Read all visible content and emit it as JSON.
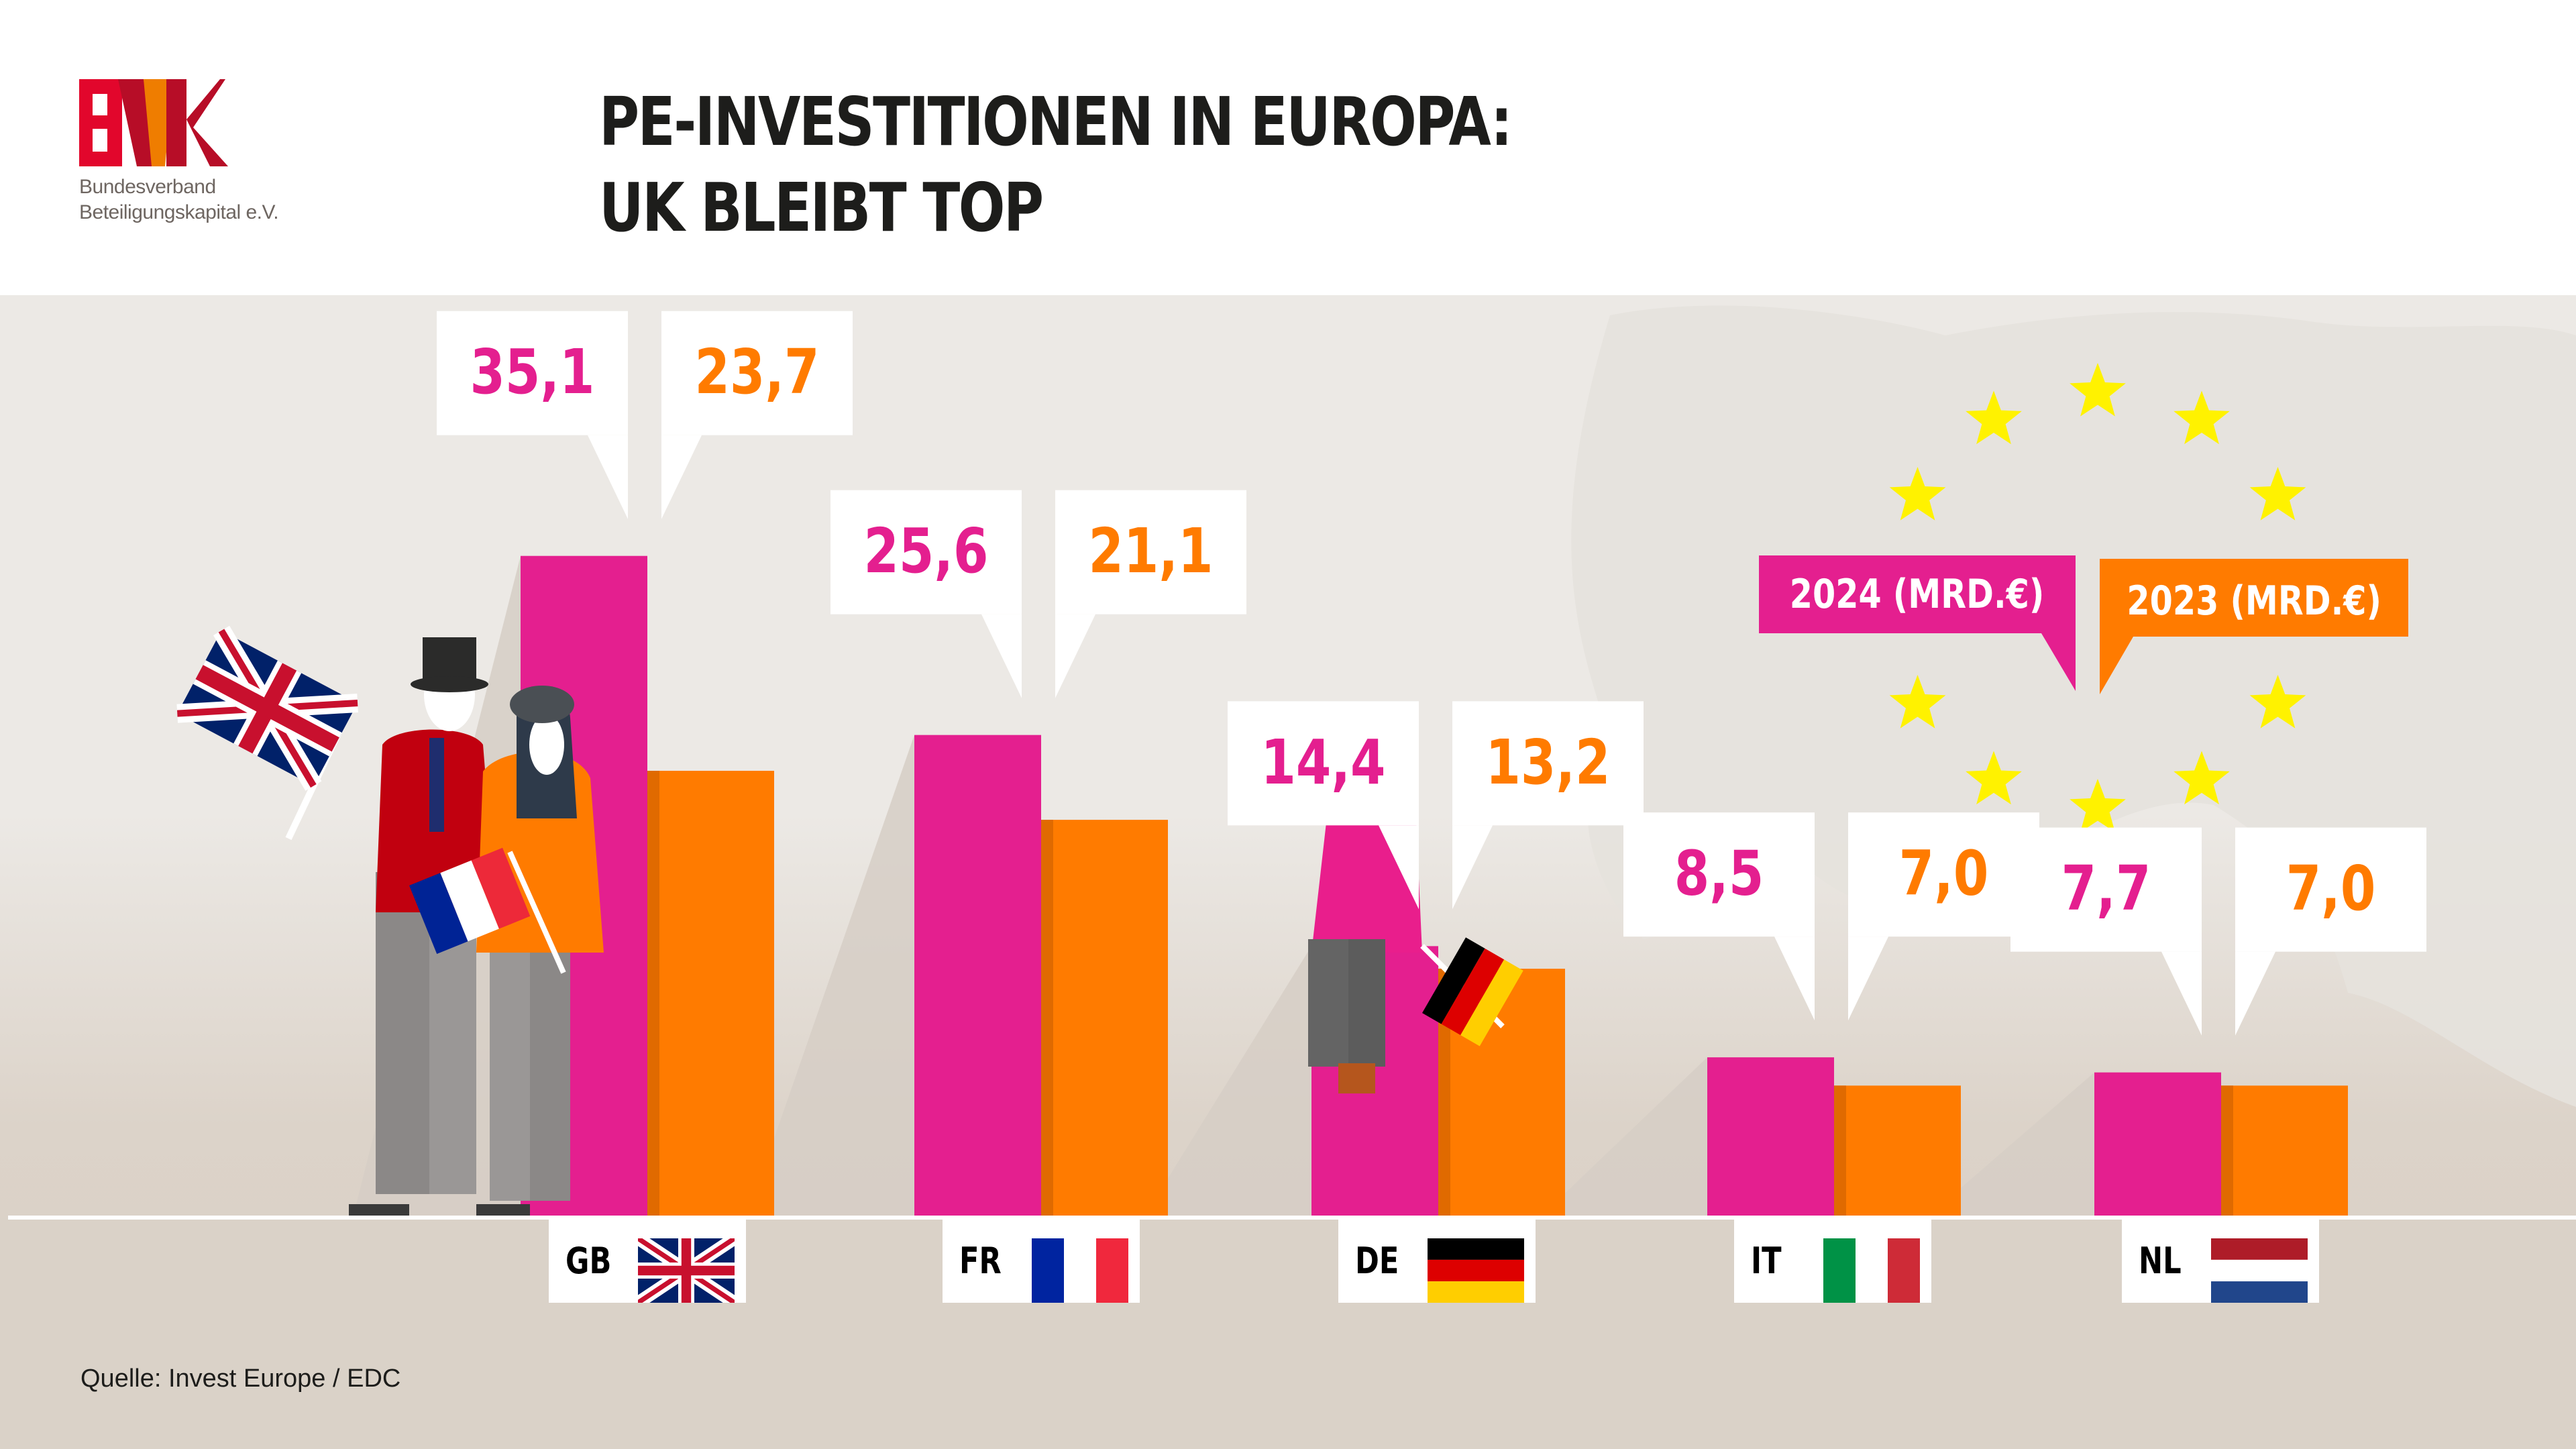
{
  "header": {
    "logo_text": "BVK",
    "logo_subtitle_line1": "Bundesverband",
    "logo_subtitle_line2": "Beteiligungskapital e.V.",
    "title_line1": "PE-INVESTITIONEN IN EUROPA:",
    "title_line2": "UK BLEIBT TOP"
  },
  "colors": {
    "series_2024": "#e41f8f",
    "series_2023": "#ff7b00",
    "stars": "#fff200",
    "logo_red": "#e2062c",
    "logo_orange": "#ef7d00",
    "logo_darkred": "#b70d27"
  },
  "footer": {
    "source": "Quelle: Invest Europe / EDC"
  },
  "chart_data": {
    "type": "bar",
    "title": "PE-INVESTITIONEN IN EUROPA: UK BLEIBT TOP",
    "xlabel": "",
    "ylabel": "",
    "unit": "Mrd. €",
    "categories": [
      "GB",
      "FR",
      "DE",
      "IT",
      "NL"
    ],
    "category_flags": [
      "flag-uk-icon",
      "flag-fr-icon",
      "flag-de-icon",
      "flag-it-icon",
      "flag-nl-icon"
    ],
    "series": [
      {
        "name": "2024 (MRD.€)",
        "values": [
          35.1,
          25.6,
          14.4,
          8.5,
          7.7
        ],
        "labels": [
          "35,1",
          "25,6",
          "14,4",
          "8,5",
          "7,7"
        ]
      },
      {
        "name": "2023 (MRD.€)",
        "values": [
          23.7,
          21.1,
          13.2,
          7.0,
          7.0
        ],
        "labels": [
          "23,7",
          "21,1",
          "13,2",
          "7,0",
          "7,0"
        ]
      }
    ],
    "ylim": [
      0,
      36
    ],
    "grid": false,
    "legend_placement": "top-right",
    "decorations": [
      "eu-stars-circle",
      "europe-map-background",
      "people-illustrations"
    ]
  }
}
